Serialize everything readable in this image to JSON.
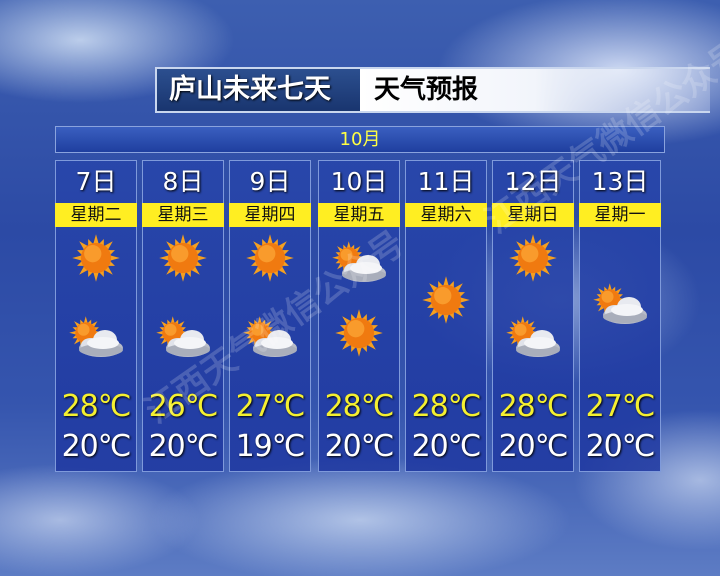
{
  "title": {
    "location": "庐山未来七天",
    "suffix": "天气预报"
  },
  "month": "10月",
  "watermark": "江西天气微信公众号",
  "colors": {
    "high_temp": "#f5f030",
    "low_temp": "#ffffff",
    "weekday_bg": "#ffee22",
    "panel": "#2846aa"
  },
  "days": [
    {
      "date": "7日",
      "weekday": "星期二",
      "icons": [
        "sunny-icon",
        "partly-cloudy-icon"
      ],
      "high": "28℃",
      "low": "20℃"
    },
    {
      "date": "8日",
      "weekday": "星期三",
      "icons": [
        "sunny-icon",
        "partly-cloudy-icon"
      ],
      "high": "26℃",
      "low": "20℃"
    },
    {
      "date": "9日",
      "weekday": "星期四",
      "icons": [
        "sunny-icon",
        "partly-cloudy-icon"
      ],
      "high": "27℃",
      "low": "19℃"
    },
    {
      "date": "10日",
      "weekday": "星期五",
      "icons": [
        "partly-cloudy-icon",
        "sunny-icon"
      ],
      "high": "28℃",
      "low": "20℃"
    },
    {
      "date": "11日",
      "weekday": "星期六",
      "icons": [
        "sunny-icon"
      ],
      "high": "28℃",
      "low": "20℃"
    },
    {
      "date": "12日",
      "weekday": "星期日",
      "icons": [
        "sunny-icon",
        "partly-cloudy-icon"
      ],
      "high": "28℃",
      "low": "20℃"
    },
    {
      "date": "13日",
      "weekday": "星期一",
      "icons": [
        "partly-cloudy-icon"
      ],
      "high": "27℃",
      "low": "20℃"
    }
  ]
}
